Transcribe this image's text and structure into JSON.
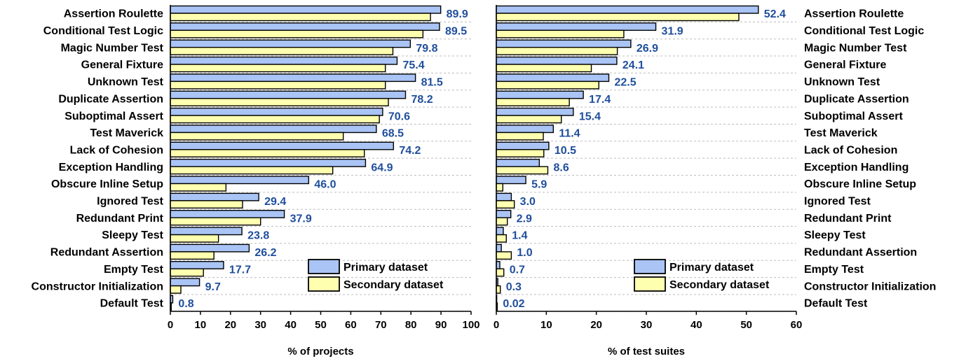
{
  "colors": {
    "primary_fill": "#a9c4f5",
    "secondary_fill": "#ffffb0",
    "bar_stroke": "#000000",
    "value_label": "#1f4e9c",
    "grid": "#bdbdbd"
  },
  "chart_data": [
    {
      "type": "bar",
      "orientation": "horizontal",
      "categories": [
        "Assertion Roulette",
        "Conditional Test Logic",
        "Magic Number Test",
        "General Fixture",
        "Unknown Test",
        "Duplicate Assertion",
        "Suboptimal Assert",
        "Test Maverick",
        "Lack of Cohesion",
        "Exception Handling",
        "Obscure Inline Setup",
        "Ignored Test",
        "Redundant Print",
        "Sleepy Test",
        "Redundant Assertion",
        "Empty Test",
        "Constructor Initialization",
        "Default Test"
      ],
      "series": [
        {
          "name": "Primary dataset",
          "values": [
            89.9,
            89.5,
            79.8,
            75.4,
            81.5,
            78.2,
            70.6,
            68.5,
            74.2,
            64.9,
            46.0,
            29.4,
            37.9,
            23.8,
            26.2,
            17.7,
            9.7,
            0.8
          ]
        },
        {
          "name": "Secondary dataset",
          "values": [
            86.5,
            84,
            74,
            71.5,
            71.5,
            72.5,
            69.5,
            57.5,
            64.5,
            54,
            18.5,
            24,
            30,
            16,
            14.5,
            11,
            3.5,
            0.3
          ]
        }
      ],
      "value_labels": [
        "89.9",
        "89.5",
        "79.8",
        "75.4",
        "81.5",
        "78.2",
        "70.6",
        "68.5",
        "74.2",
        "64.9",
        "46.0",
        "29.4",
        "37.9",
        "23.8",
        "26.2",
        "17.7",
        "9.7",
        "0.8"
      ],
      "xlabel": "% of projects",
      "xlim": [
        0,
        100
      ],
      "xticks": [
        "0",
        "10",
        "20",
        "30",
        "40",
        "50",
        "60",
        "70",
        "80",
        "90",
        "100"
      ],
      "category_labels_side": "left",
      "legend": {
        "placement": "bottom-right",
        "entries": [
          "Primary dataset",
          "Secondary dataset"
        ]
      },
      "grid": true
    },
    {
      "type": "bar",
      "orientation": "horizontal",
      "categories": [
        "Assertion Roulette",
        "Conditional Test Logic",
        "Magic Number Test",
        "General Fixture",
        "Unknown Test",
        "Duplicate Assertion",
        "Suboptimal Assert",
        "Test Maverick",
        "Lack of Cohesion",
        "Exception Handling",
        "Obscure Inline Setup",
        "Ignored Test",
        "Redundant Print",
        "Sleepy Test",
        "Redundant Assertion",
        "Empty Test",
        "Constructor Initialization",
        "Default Test"
      ],
      "series": [
        {
          "name": "Primary dataset",
          "values": [
            52.4,
            31.9,
            26.9,
            24.1,
            22.5,
            17.4,
            15.4,
            11.4,
            10.5,
            8.6,
            5.9,
            3.0,
            2.9,
            1.4,
            1.0,
            0.7,
            0.3,
            0.02
          ]
        },
        {
          "name": "Secondary dataset",
          "values": [
            48.5,
            25.5,
            24.2,
            19,
            20.5,
            14.6,
            13,
            9.4,
            9.5,
            10.3,
            1.3,
            3.6,
            2.2,
            2.0,
            3.0,
            1.5,
            0.8,
            0.2
          ]
        }
      ],
      "value_labels": [
        "52.4",
        "31.9",
        "26.9",
        "24.1",
        "22.5",
        "17.4",
        "15.4",
        "11.4",
        "10.5",
        "8.6",
        "5.9",
        "3.0",
        "2.9",
        "1.4",
        "1.0",
        "0.7",
        "0.3",
        "0.02"
      ],
      "xlabel": "% of test suites",
      "xlim": [
        0,
        60
      ],
      "xticks": [
        "0",
        "10",
        "20",
        "30",
        "40",
        "50",
        "60"
      ],
      "category_labels_side": "right",
      "legend": {
        "placement": "bottom-right",
        "entries": [
          "Primary dataset",
          "Secondary dataset"
        ]
      },
      "grid": true
    }
  ]
}
